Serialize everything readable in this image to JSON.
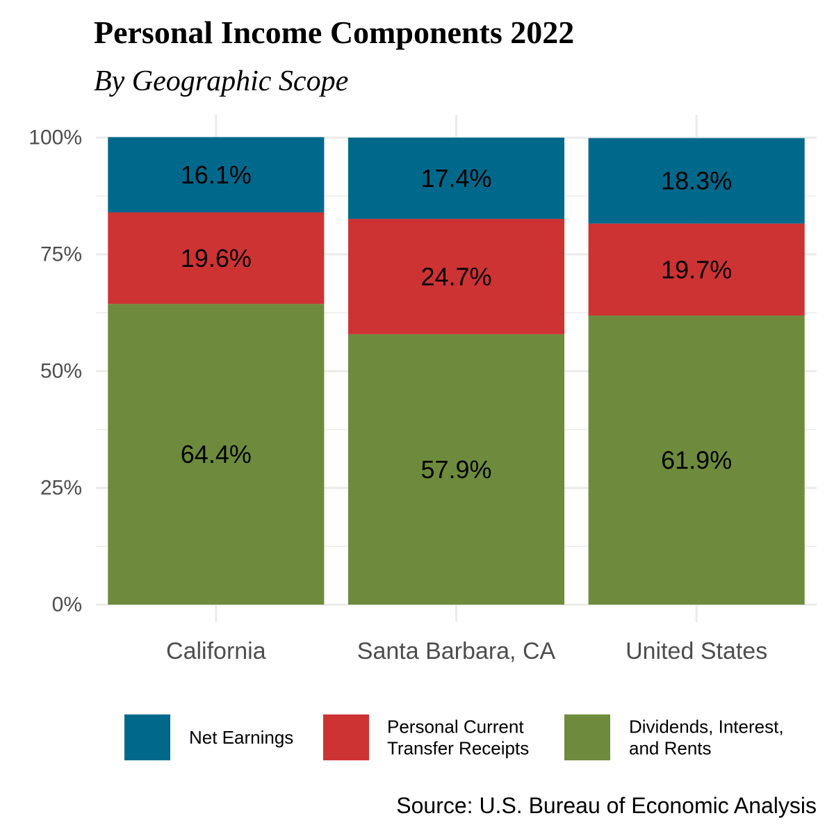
{
  "chart_data": {
    "type": "bar",
    "stacked": true,
    "percent_axis": true,
    "title": "Personal Income Components 2022",
    "subtitle": "By Geographic Scope",
    "caption": "Source: U.S. Bureau of Economic Analysis",
    "xlabel": "",
    "ylabel": "",
    "ylim": [
      0,
      100
    ],
    "y_ticks": [
      0,
      25,
      50,
      75,
      100
    ],
    "y_tick_labels": [
      "0%",
      "25%",
      "50%",
      "75%",
      "100%"
    ],
    "grid": true,
    "legend_position": "bottom",
    "categories": [
      "California",
      "Santa Barbara, CA",
      "United States"
    ],
    "series": [
      {
        "name": "Dividends, Interest, and Rents",
        "legend_lines": [
          "Dividends, Interest,",
          "and Rents"
        ],
        "color": "#6E8B3D",
        "values": [
          64.4,
          57.9,
          61.9
        ],
        "labels": [
          "64.4%",
          "57.9%",
          "61.9%"
        ]
      },
      {
        "name": "Personal Current Transfer Receipts",
        "legend_lines": [
          "Personal Current",
          "Transfer Receipts"
        ],
        "color": "#CD3333",
        "values": [
          19.6,
          24.7,
          19.7
        ],
        "labels": [
          "19.6%",
          "24.7%",
          "19.7%"
        ]
      },
      {
        "name": "Net Earnings",
        "legend_lines": [
          "Net Earnings"
        ],
        "color": "#00688B",
        "values": [
          16.1,
          17.4,
          18.3
        ],
        "labels": [
          "16.1%",
          "17.4%",
          "18.3%"
        ]
      }
    ],
    "legend_order": [
      "Net Earnings",
      "Personal Current Transfer Receipts",
      "Dividends, Interest, and Rents"
    ]
  }
}
